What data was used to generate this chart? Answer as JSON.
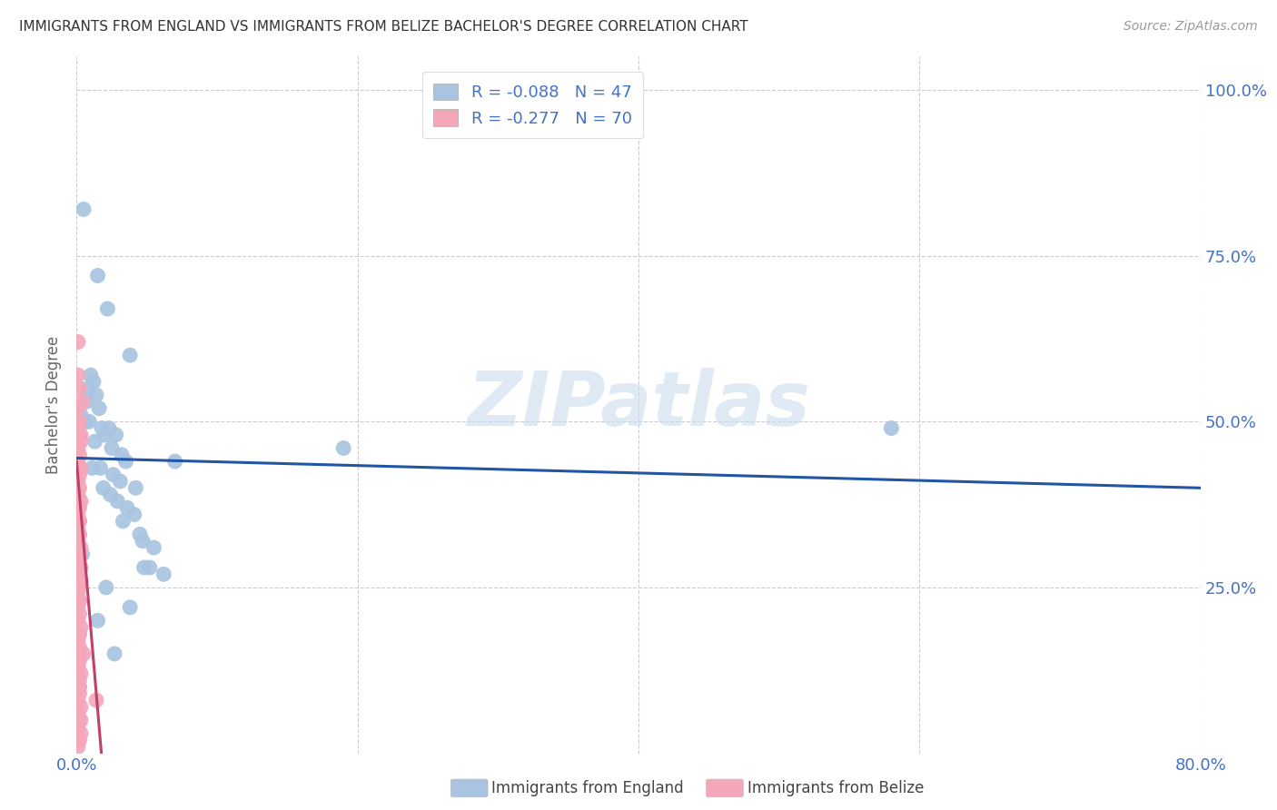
{
  "title": "IMMIGRANTS FROM ENGLAND VS IMMIGRANTS FROM BELIZE BACHELOR'S DEGREE CORRELATION CHART",
  "source": "Source: ZipAtlas.com",
  "ylabel": "Bachelor's Degree",
  "legend_england": "R = -0.088   N = 47",
  "legend_belize": "R = -0.277   N = 70",
  "legend_label_england": "Immigrants from England",
  "legend_label_belize": "Immigrants from Belize",
  "england_color": "#a8c4e0",
  "belize_color": "#f4a7b9",
  "england_line_color": "#2255a4",
  "belize_line_color": "#c0406a",
  "xlim": [
    0.0,
    0.8
  ],
  "ylim": [
    0.0,
    1.05
  ],
  "watermark": "ZIPatlas",
  "title_color": "#333333",
  "axis_color": "#4472c4",
  "grid_color": "#cccccc",
  "england_x": [
    0.005,
    0.015,
    0.022,
    0.038,
    0.01,
    0.012,
    0.008,
    0.014,
    0.007,
    0.016,
    0.003,
    0.006,
    0.009,
    0.018,
    0.023,
    0.028,
    0.02,
    0.013,
    0.025,
    0.032,
    0.035,
    0.011,
    0.017,
    0.026,
    0.031,
    0.042,
    0.019,
    0.024,
    0.029,
    0.036,
    0.033,
    0.041,
    0.045,
    0.047,
    0.055,
    0.048,
    0.062,
    0.07,
    0.19,
    0.58,
    0.004,
    0.021,
    0.038,
    0.052,
    0.002,
    0.027,
    0.015
  ],
  "england_y": [
    0.82,
    0.72,
    0.67,
    0.6,
    0.57,
    0.56,
    0.55,
    0.54,
    0.53,
    0.52,
    0.51,
    0.5,
    0.5,
    0.49,
    0.49,
    0.48,
    0.48,
    0.47,
    0.46,
    0.45,
    0.44,
    0.43,
    0.43,
    0.42,
    0.41,
    0.4,
    0.4,
    0.39,
    0.38,
    0.37,
    0.35,
    0.36,
    0.33,
    0.32,
    0.31,
    0.28,
    0.27,
    0.44,
    0.46,
    0.49,
    0.3,
    0.25,
    0.22,
    0.28,
    0.1,
    0.15,
    0.2
  ],
  "belize_x": [
    0.001,
    0.001,
    0.002,
    0.001,
    0.002,
    0.001,
    0.002,
    0.003,
    0.001,
    0.002,
    0.001,
    0.003,
    0.002,
    0.001,
    0.002,
    0.001,
    0.003,
    0.002,
    0.001,
    0.002,
    0.001,
    0.002,
    0.001,
    0.003,
    0.002,
    0.001,
    0.002,
    0.001,
    0.003,
    0.002,
    0.001,
    0.002,
    0.001,
    0.002,
    0.001,
    0.003,
    0.002,
    0.001,
    0.002,
    0.001,
    0.002,
    0.001,
    0.003,
    0.002,
    0.001,
    0.002,
    0.001,
    0.003,
    0.001,
    0.002,
    0.001,
    0.003,
    0.002,
    0.001,
    0.004,
    0.001,
    0.002,
    0.001,
    0.003,
    0.002,
    0.001,
    0.002,
    0.001,
    0.003,
    0.002,
    0.001,
    0.005,
    0.002,
    0.003,
    0.014
  ],
  "belize_y": [
    0.62,
    0.57,
    0.55,
    0.52,
    0.5,
    0.49,
    0.48,
    0.47,
    0.46,
    0.45,
    0.44,
    0.43,
    0.42,
    0.41,
    0.4,
    0.39,
    0.38,
    0.37,
    0.36,
    0.35,
    0.34,
    0.33,
    0.32,
    0.31,
    0.3,
    0.29,
    0.28,
    0.27,
    0.26,
    0.25,
    0.24,
    0.23,
    0.22,
    0.21,
    0.2,
    0.19,
    0.18,
    0.17,
    0.16,
    0.15,
    0.14,
    0.13,
    0.12,
    0.11,
    0.1,
    0.09,
    0.08,
    0.07,
    0.06,
    0.05,
    0.04,
    0.03,
    0.02,
    0.01,
    0.53,
    0.43,
    0.33,
    0.38,
    0.28,
    0.18,
    0.13,
    0.23,
    0.43,
    0.48,
    0.35,
    0.25,
    0.15,
    0.1,
    0.05,
    0.08
  ]
}
